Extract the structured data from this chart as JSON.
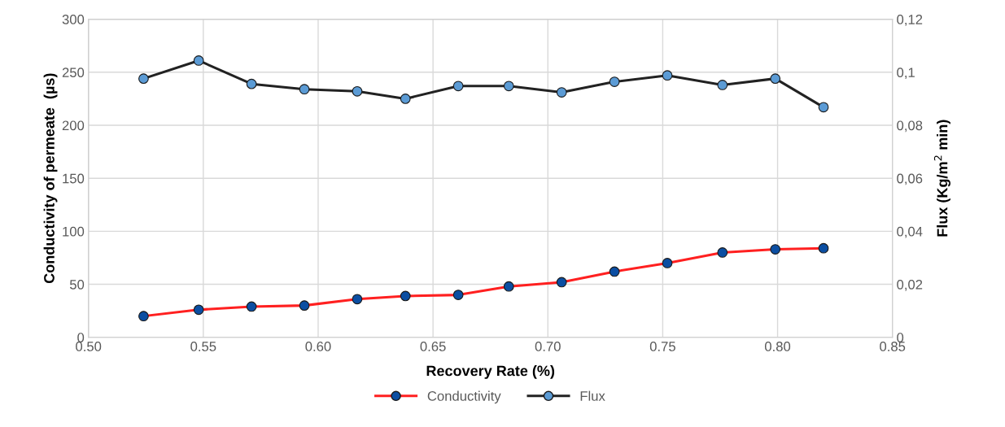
{
  "chart_data": {
    "type": "line",
    "xlabel": "Recovery Rate (%)",
    "ylabel": "Conductivity of permeate  (µs)",
    "y2label": "Flux (Kg/m$^{2}$ min)",
    "x": [
      0.524,
      0.548,
      0.571,
      0.594,
      0.617,
      0.638,
      0.661,
      0.683,
      0.706,
      0.729,
      0.752,
      0.776,
      0.799,
      0.82
    ],
    "series": [
      {
        "name": "Conductivity",
        "color": "#ff2020",
        "colors": [
          "#0b4ea2",
          "#0b4ea2",
          "#0b4ea2",
          "#0b4ea2",
          "#0b4ea2",
          "#0b4ea2",
          "#0b4ea2",
          "#0b4ea2",
          "#0b4ea2",
          "#0b4ea2",
          "#0b4ea2",
          "#0b4ea2",
          "#0b4ea2",
          "#0b4ea2"
        ],
        "values": [
          20,
          26,
          29,
          30,
          36,
          39,
          40,
          48,
          52,
          62,
          70,
          80,
          83,
          84
        ]
      },
      {
        "name": "Flux",
        "color": "#222222",
        "axis": "y2",
        "colors": [
          "#5b9bd5",
          "#5b9bd5",
          "#5b9bd5",
          "#5b9bd5",
          "#5b9bd5",
          "#5b9bd5",
          "#5b9bd5",
          "#5b9bd5",
          "#5b9bd5",
          "#5b9bd5",
          "#5b9bd5",
          "#5b9bd5",
          "#5b9bd5",
          "#5b9bd5"
        ],
        "values": [
          0.0976,
          0.1044,
          0.0956,
          0.0936,
          0.0928,
          0.09,
          0.0948,
          0.0948,
          0.0924,
          0.0964,
          0.0988,
          0.0952,
          0.0976,
          0.0868
        ]
      }
    ],
    "xlim": [
      0.5,
      0.85
    ],
    "xticks": [
      {
        "value": 0.5,
        "label": "0.50"
      },
      {
        "value": 0.55,
        "label": "0.55"
      },
      {
        "value": 0.6,
        "label": "0.60"
      },
      {
        "value": 0.65,
        "label": "0.65"
      },
      {
        "value": 0.7,
        "label": "0.70"
      },
      {
        "value": 0.75,
        "label": "0.75"
      },
      {
        "value": 0.8,
        "label": "0.80"
      },
      {
        "value": 0.85,
        "label": "0.85"
      }
    ],
    "ylim": [
      0,
      300
    ],
    "yticks": [
      0,
      50,
      100,
      150,
      200,
      250,
      300
    ],
    "y2lim": [
      0,
      0.12
    ],
    "y2ticks": [
      {
        "value": 0,
        "label": "0"
      },
      {
        "value": 0.02,
        "label": "0,02"
      },
      {
        "value": 0.04,
        "label": "0,04"
      },
      {
        "value": 0.06,
        "label": "0,06"
      },
      {
        "value": 0.08,
        "label": "0,08"
      },
      {
        "value": 0.1,
        "label": "0,1"
      },
      {
        "value": 0.12,
        "label": "0,12"
      }
    ],
    "grid": true,
    "legend": "bottom",
    "marker": "circle",
    "line_style": "solid"
  }
}
